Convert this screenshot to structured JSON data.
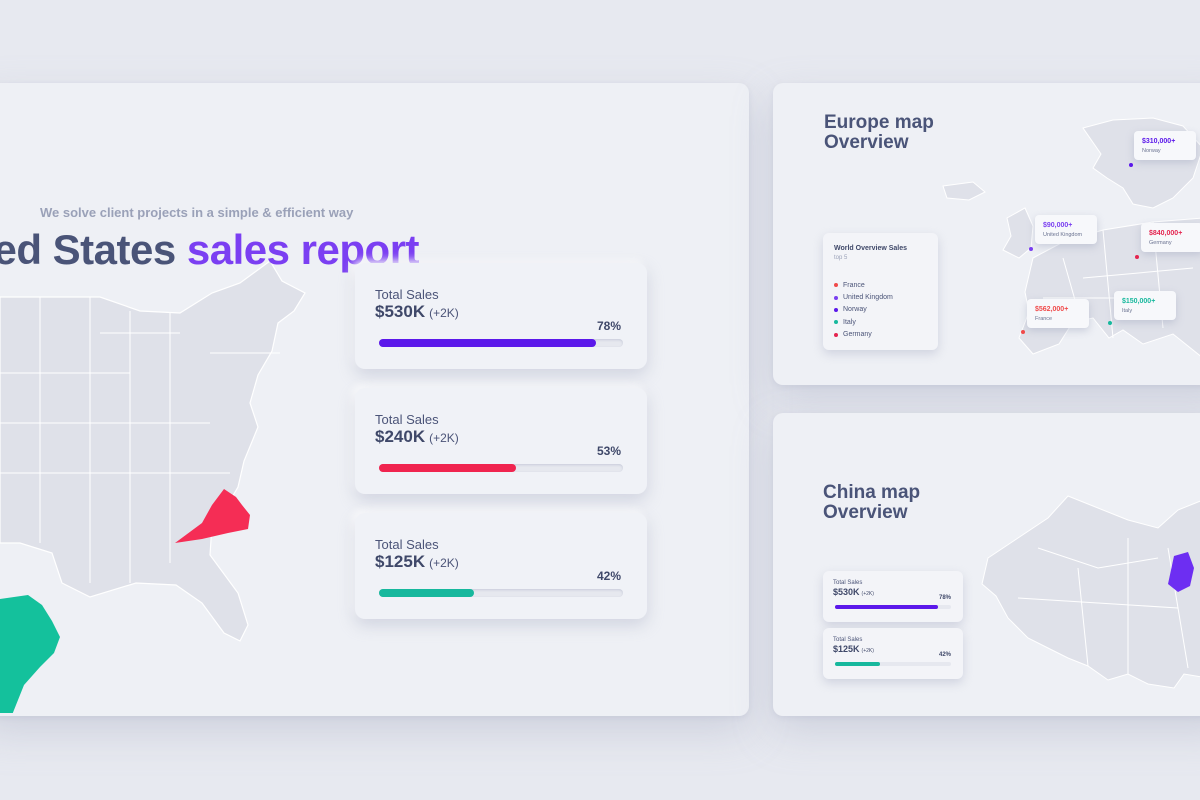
{
  "main": {
    "title_start": "ted States ",
    "title_accent": "sales report",
    "subtitle": "We solve client projects in a simple & efficient way",
    "cards": [
      {
        "label": "Total Sales",
        "value": "$530K",
        "delta": "(+2K)",
        "pct": "78%",
        "progress": 0.89,
        "color": "#5b18ea"
      },
      {
        "label": "Total Sales",
        "value": "$240K",
        "delta": "(+2K)",
        "pct": "53%",
        "progress": 0.56,
        "color": "#f0244f"
      },
      {
        "label": "Total Sales",
        "value": "$125K",
        "delta": "(+2K)",
        "pct": "42%",
        "progress": 0.39,
        "color": "#17b89d"
      }
    ]
  },
  "europe": {
    "title_line1": "Europe map",
    "title_line2": "Overview",
    "legend_title": "World Overview Sales",
    "legend_sub": "top 5",
    "legend": [
      {
        "name": "France",
        "color": "#f04a4a"
      },
      {
        "name": "United Kingdom",
        "color": "#7a3ff0"
      },
      {
        "name": "Norway",
        "color": "#5b18ea"
      },
      {
        "name": "Italy",
        "color": "#17b89d"
      },
      {
        "name": "Germany",
        "color": "#e4244f"
      }
    ],
    "tags": [
      {
        "value": "$310,000+",
        "country": "Norway",
        "color": "#5b18ea"
      },
      {
        "value": "$90,000+",
        "country": "United Kingdom",
        "color": "#7a3ff0"
      },
      {
        "value": "$840,000+",
        "country": "Germany",
        "color": "#e4244f"
      },
      {
        "value": "$562,000+",
        "country": "France",
        "color": "#f04a4a"
      },
      {
        "value": "$150,000+",
        "country": "Italy",
        "color": "#17b89d"
      }
    ]
  },
  "china": {
    "title_line1": "China map",
    "title_line2": "Overview",
    "cards": [
      {
        "label": "Total Sales",
        "value": "$530K",
        "delta": "(+2K)",
        "pct": "78%",
        "progress": 0.89,
        "color": "#5b18ea"
      },
      {
        "label": "Total Sales",
        "value": "$125K",
        "delta": "(+2K)",
        "pct": "42%",
        "progress": 0.39,
        "color": "#17b89d"
      }
    ]
  },
  "colors": {
    "highlight_state": "#f52d55",
    "highlight_teal": "#14c19c",
    "highlight_purple": "#6d2ef2",
    "map_fill": "#dfe1e9"
  }
}
